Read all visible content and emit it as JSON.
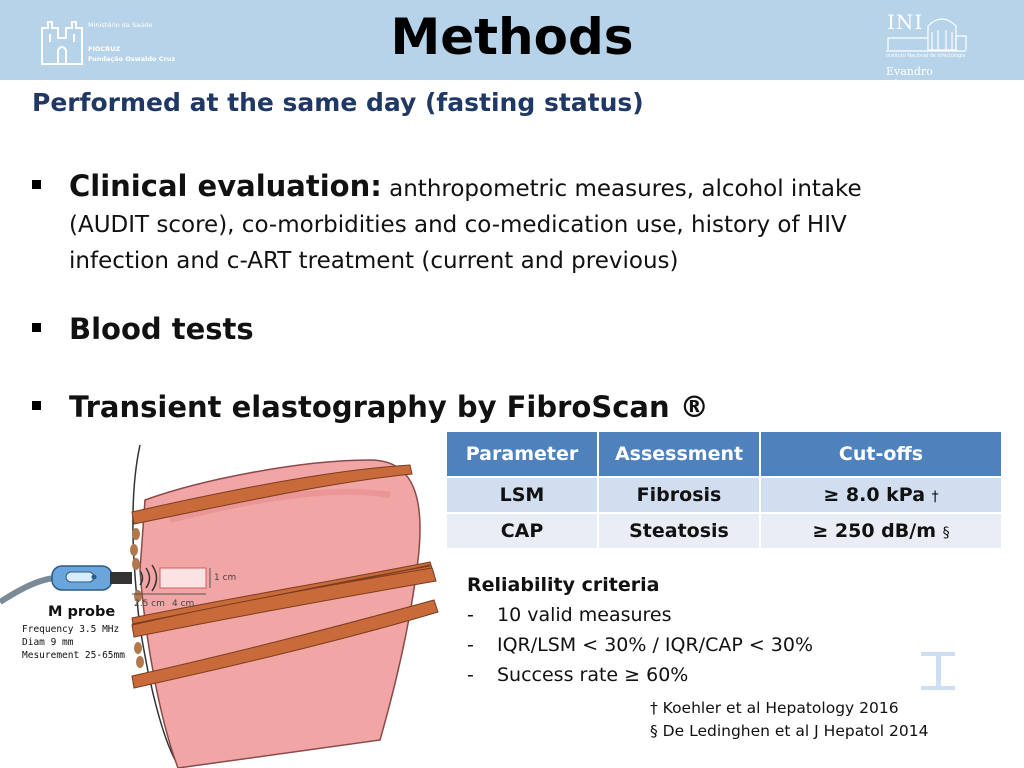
{
  "header": {
    "title": "Methods",
    "logo_left": {
      "ministry": "Ministério da Saúde",
      "org_line1": "FIOCRUZ",
      "org_line2": "Fundação Oswaldo Cruz"
    },
    "logo_right": {
      "letters": "INI",
      "institute": "Instituto Nacional de Infectologia",
      "name": "Evandro Chagas"
    }
  },
  "subtitle": "Performed at the same day (fasting status)",
  "bullets": [
    {
      "lead": "Clinical evaluation:",
      "text": " anthropometric measures, alcohol intake (AUDIT score), co-morbidities and co-medication use, history of HIV infection and c-ART treatment (current and previous)"
    },
    {
      "lead": "Blood tests",
      "text": ""
    },
    {
      "lead": "Transient elastography by FibroScan ®",
      "text": ""
    }
  ],
  "table": {
    "headers": [
      "Parameter",
      "Assessment",
      "Cut-offs"
    ],
    "rows": [
      {
        "parameter": "LSM",
        "assessment": "Fibrosis",
        "cutoff": "≥ 8.0 kPa",
        "mark": "†"
      },
      {
        "parameter": "CAP",
        "assessment": "Steatosis",
        "cutoff": "≥ 250 dB/m",
        "mark": "§"
      }
    ]
  },
  "reliability": {
    "title": "Reliability criteria",
    "items": [
      "10 valid measures",
      "IQR/LSM < 30% / IQR/CAP < 30%",
      "Success rate ≥ 60%"
    ]
  },
  "references": [
    "† Koehler et al Hepatology 2016",
    "§ De Ledinghen et al J Hepatol 2014"
  ],
  "diagram": {
    "probe_name": "M probe",
    "specs": [
      "Frequency 3.5 MHz",
      "Diam 9 mm",
      "Mesurement 25-65mm"
    ],
    "scale_1cm": "1 cm",
    "scale_25cm": "2.5 cm",
    "scale_4cm": "4 cm"
  },
  "colors": {
    "header_bg": "#b7d3e9",
    "subtitle": "#203864",
    "table_header": "#4f81bd",
    "table_row_1": "#d0def0",
    "table_row_2": "#e9eef6",
    "liver": "#f2a5a5",
    "rib": "#c86a3a"
  }
}
